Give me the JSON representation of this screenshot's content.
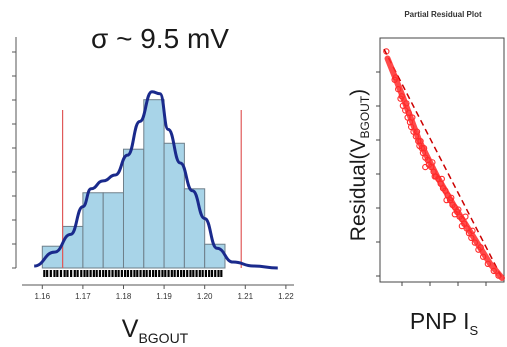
{
  "chart_data": [
    {
      "type": "bar",
      "title": "σ ~ 9.5 mV",
      "xlabel_main": "V",
      "xlabel_sub": "BGOUT",
      "xticks": [
        "1.16",
        "1.17",
        "1.18",
        "1.19",
        "1.20",
        "1.21",
        "1.22"
      ],
      "xlim": [
        1.155,
        1.222
      ],
      "ylim": [
        0,
        1
      ],
      "bins": [
        {
          "x0": 1.16,
          "x1": 1.165,
          "value": 0.11
        },
        {
          "x0": 1.165,
          "x1": 1.17,
          "value": 0.21
        },
        {
          "x0": 1.17,
          "x1": 1.175,
          "value": 0.38
        },
        {
          "x0": 1.175,
          "x1": 1.18,
          "value": 0.38
        },
        {
          "x0": 1.18,
          "x1": 1.185,
          "value": 0.6
        },
        {
          "x0": 1.185,
          "x1": 1.19,
          "value": 0.85
        },
        {
          "x0": 1.19,
          "x1": 1.195,
          "value": 0.63
        },
        {
          "x0": 1.195,
          "x1": 1.2,
          "value": 0.4
        },
        {
          "x0": 1.2,
          "x1": 1.205,
          "value": 0.12
        }
      ],
      "density_curve": [
        [
          1.158,
          0.01
        ],
        [
          1.163,
          0.08
        ],
        [
          1.167,
          0.17
        ],
        [
          1.17,
          0.31
        ],
        [
          1.172,
          0.4
        ],
        [
          1.175,
          0.44
        ],
        [
          1.178,
          0.47
        ],
        [
          1.181,
          0.57
        ],
        [
          1.184,
          0.74
        ],
        [
          1.187,
          0.89
        ],
        [
          1.189,
          0.88
        ],
        [
          1.191,
          0.7
        ],
        [
          1.194,
          0.53
        ],
        [
          1.197,
          0.39
        ],
        [
          1.2,
          0.25
        ],
        [
          1.203,
          0.1
        ],
        [
          1.207,
          0.03
        ],
        [
          1.212,
          0.01
        ],
        [
          1.218,
          0.0
        ]
      ],
      "limit_lines": [
        1.165,
        1.209
      ],
      "rug": [
        1.1605,
        1.1612,
        1.1621,
        1.163,
        1.1637,
        1.1646,
        1.1655,
        1.1662,
        1.1671,
        1.168,
        1.1687,
        1.1696,
        1.1704,
        1.1711,
        1.1719,
        1.1727,
        1.1734,
        1.1742,
        1.175,
        1.1757,
        1.1765,
        1.1773,
        1.1781,
        1.1788,
        1.1796,
        1.1804,
        1.1811,
        1.1819,
        1.1827,
        1.1834,
        1.1842,
        1.185,
        1.1857,
        1.1865,
        1.1873,
        1.188,
        1.1888,
        1.1896,
        1.1903,
        1.1911,
        1.1919,
        1.1926,
        1.1934,
        1.1942,
        1.1949,
        1.1957,
        1.1965,
        1.1972,
        1.198,
        1.1988,
        1.1995,
        1.2003,
        1.2011,
        1.2018,
        1.2026,
        1.2034,
        1.2041
      ],
      "colors": {
        "bar_fill": "#a8d4e8",
        "bar_stroke": "#6e7f8a",
        "curve": "#1a2a8c",
        "limit": "#e05a5a",
        "rug": "#000000"
      }
    },
    {
      "type": "scatter",
      "title": "Partial Residual Plot",
      "ylabel_main": "Residual(V",
      "ylabel_sub": "BGOUT",
      "ylabel_end": ")",
      "xlabel_main": "PNP I",
      "xlabel_sub": "S",
      "xlim": [
        0,
        1
      ],
      "ylim": [
        0,
        1
      ],
      "points": [
        [
          0.02,
          0.96
        ],
        [
          0.09,
          0.84
        ],
        [
          0.12,
          0.8
        ],
        [
          0.14,
          0.76
        ],
        [
          0.16,
          0.73
        ],
        [
          0.18,
          0.71
        ],
        [
          0.2,
          0.68
        ],
        [
          0.22,
          0.66
        ],
        [
          0.23,
          0.64
        ],
        [
          0.25,
          0.62
        ],
        [
          0.27,
          0.6
        ],
        [
          0.29,
          0.58
        ],
        [
          0.3,
          0.56
        ],
        [
          0.32,
          0.55
        ],
        [
          0.33,
          0.53
        ],
        [
          0.35,
          0.51
        ],
        [
          0.37,
          0.5
        ],
        [
          0.38,
          0.48
        ],
        [
          0.4,
          0.47
        ],
        [
          0.42,
          0.45
        ],
        [
          0.44,
          0.43
        ],
        [
          0.46,
          0.42
        ],
        [
          0.48,
          0.4
        ],
        [
          0.5,
          0.38
        ],
        [
          0.52,
          0.37
        ],
        [
          0.54,
          0.35
        ],
        [
          0.56,
          0.33
        ],
        [
          0.58,
          0.31
        ],
        [
          0.6,
          0.3
        ],
        [
          0.62,
          0.28
        ],
        [
          0.64,
          0.26
        ],
        [
          0.66,
          0.25
        ],
        [
          0.68,
          0.23
        ],
        [
          0.7,
          0.21
        ],
        [
          0.72,
          0.19
        ],
        [
          0.74,
          0.17
        ],
        [
          0.77,
          0.15
        ],
        [
          0.8,
          0.12
        ],
        [
          0.84,
          0.09
        ],
        [
          0.88,
          0.06
        ],
        [
          0.93,
          0.03
        ],
        [
          0.97,
          0.01
        ],
        [
          0.15,
          0.77
        ],
        [
          0.21,
          0.7
        ],
        [
          0.28,
          0.62
        ],
        [
          0.34,
          0.55
        ],
        [
          0.41,
          0.49
        ],
        [
          0.49,
          0.42
        ],
        [
          0.57,
          0.34
        ],
        [
          0.63,
          0.29
        ],
        [
          0.69,
          0.26
        ],
        [
          0.75,
          0.2
        ],
        [
          0.82,
          0.13
        ],
        [
          0.43,
          0.43
        ],
        [
          0.53,
          0.33
        ],
        [
          0.6,
          0.27
        ],
        [
          0.31,
          0.58
        ],
        [
          0.24,
          0.68
        ],
        [
          0.19,
          0.74
        ],
        [
          0.1,
          0.85
        ],
        [
          0.35,
          0.47
        ],
        [
          0.66,
          0.22
        ]
      ],
      "fit_line": [
        [
          0.0,
          0.97
        ],
        [
          1.0,
          0.0
        ]
      ],
      "curve_fit": [
        [
          0.03,
          0.93
        ],
        [
          0.15,
          0.78
        ],
        [
          0.3,
          0.58
        ],
        [
          0.45,
          0.43
        ],
        [
          0.6,
          0.3
        ],
        [
          0.75,
          0.18
        ],
        [
          0.9,
          0.06
        ],
        [
          1.0,
          0.0
        ]
      ],
      "colors": {
        "points": "#ff2a2a",
        "line": "#cc0000"
      }
    }
  ]
}
